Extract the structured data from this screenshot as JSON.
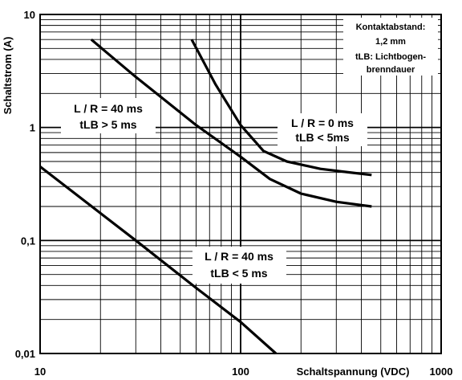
{
  "chart_data": {
    "type": "line",
    "xscale": "log",
    "yscale": "log",
    "xlim": [
      10,
      1000
    ],
    "ylim": [
      0.01,
      10
    ],
    "xlabel": "Schaltspannung (VDC)",
    "ylabel": "Schaltstrom (A)",
    "x_ticks": [
      "10",
      "100",
      "1000"
    ],
    "y_ticks": [
      "10",
      "1",
      "0,1",
      "0,01"
    ],
    "grid": true,
    "series": [
      {
        "x": [
          18,
          30,
          60,
          100,
          140,
          200,
          300,
          450
        ],
        "y": [
          6,
          2.8,
          1.05,
          0.55,
          0.35,
          0.26,
          0.22,
          0.2
        ]
      },
      {
        "x": [
          57,
          75,
          100,
          130,
          170,
          250,
          350,
          450
        ],
        "y": [
          6,
          2.4,
          1.05,
          0.62,
          0.5,
          0.43,
          0.4,
          0.38
        ]
      },
      {
        "x": [
          10,
          30,
          60,
          100,
          150
        ],
        "y": [
          0.45,
          0.1,
          0.038,
          0.019,
          0.01
        ]
      }
    ],
    "annotations": [
      {
        "lines": [
          "L / R = 40 ms",
          "tLB > 5 ms"
        ]
      },
      {
        "lines": [
          "L / R = 0 ms",
          "tLB < 5ms"
        ]
      },
      {
        "lines": [
          "L / R = 40 ms",
          "tLB < 5 ms"
        ]
      },
      {
        "lines": [
          "Kontaktabstand:",
          "1,2 mm",
          "tLB: Lichtbogen-",
          "brenndauer"
        ]
      }
    ]
  }
}
